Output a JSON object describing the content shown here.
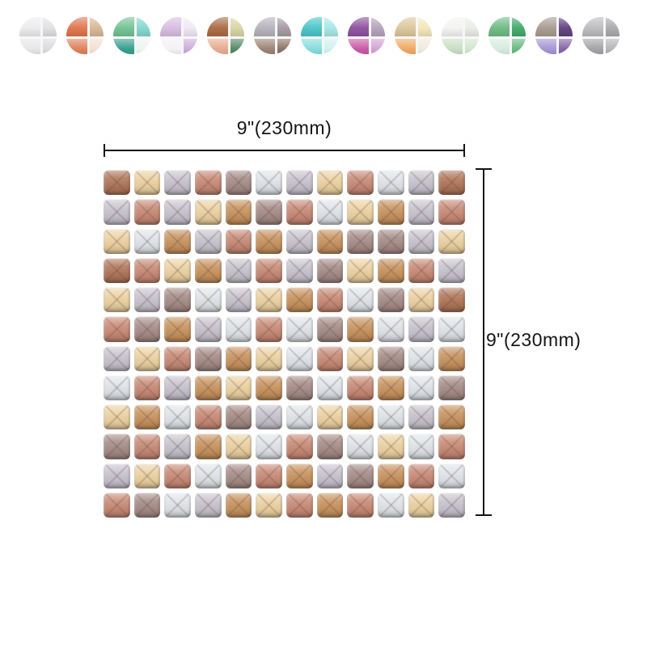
{
  "page": {
    "background": "#ffffff",
    "accent_text_color": "#151515"
  },
  "swatches": {
    "items": [
      {
        "name": "white-marble",
        "colors": [
          "#ececee",
          "#e0e0e3",
          "#e6e5e8",
          "#dadadd"
        ]
      },
      {
        "name": "orange-tan",
        "colors": [
          "#e0744b",
          "#d9b695",
          "#dd7e55",
          "#f4ded0"
        ]
      },
      {
        "name": "green-teal",
        "colors": [
          "#72c293",
          "#83d6cf",
          "#2f9c8b",
          "#ecf4f1"
        ]
      },
      {
        "name": "lavender",
        "colors": [
          "#d8bce2",
          "#f0e9f4",
          "#f4f0f6",
          "#cbaadb"
        ]
      },
      {
        "name": "brown-olive",
        "colors": [
          "#aa6a42",
          "#d8d4a4",
          "#e7a78d",
          "#4e8663"
        ]
      },
      {
        "name": "gray-brown",
        "colors": [
          "#b5b2ba",
          "#a39ca2",
          "#9a7f70",
          "#8b7062"
        ]
      },
      {
        "name": "aqua",
        "colors": [
          "#49c5c9",
          "#a5e7e5",
          "#83dada",
          "#cdf1ef"
        ]
      },
      {
        "name": "purple-magenta",
        "colors": [
          "#8e509f",
          "#b4a3bb",
          "#c655a2",
          "#d0a0d6"
        ]
      },
      {
        "name": "cream-orange",
        "colors": [
          "#dcc69c",
          "#f4e6ba",
          "#efa660",
          "#efe9dc"
        ]
      },
      {
        "name": "pale-green",
        "colors": [
          "#f3f3f1",
          "#e9ece6",
          "#c6dec2",
          "#d2e5cd"
        ]
      },
      {
        "name": "green",
        "colors": [
          "#6cbc82",
          "#42a86b",
          "#d2ecdd",
          "#63b67f"
        ]
      },
      {
        "name": "taupe-purple",
        "colors": [
          "#a79a90",
          "#61407f",
          "#a092d2",
          "#8061a2"
        ]
      },
      {
        "name": "silver-gray",
        "colors": [
          "#bbbbbf",
          "#aaaaae",
          "#a0a0a4",
          "#b2b2b6"
        ]
      }
    ]
  },
  "product": {
    "dimensions": {
      "width_label": "9\"(230mm)",
      "height_label": "9\"(230mm)"
    },
    "sheet": {
      "rows": 12,
      "cols": 12,
      "palette": {
        "B": "#b0765a",
        "C": "#c8935e",
        "T": "#ecd2a2",
        "S": "#c88a76",
        "M": "#a68c87",
        "G": "#c7c3cd",
        "W": "#e0e4e8"
      },
      "tile_rows": [
        "BTGSMWGTSWGB",
        "GSGTCMSWTCGS",
        "TWCGSCGCMMGT",
        "BSTCGSGMTCSG",
        "TGMWGTCSWMTB",
        "SMCGWSWMCWGW",
        "GTSMCTWSTMWC",
        "WSGCTCMWSCWM",
        "TCWSMGWTCWGC",
        "MSGCTWSMWTWS",
        "GTSWMSCGMCSW",
        "SMWGCTSCSWTG"
      ]
    }
  }
}
